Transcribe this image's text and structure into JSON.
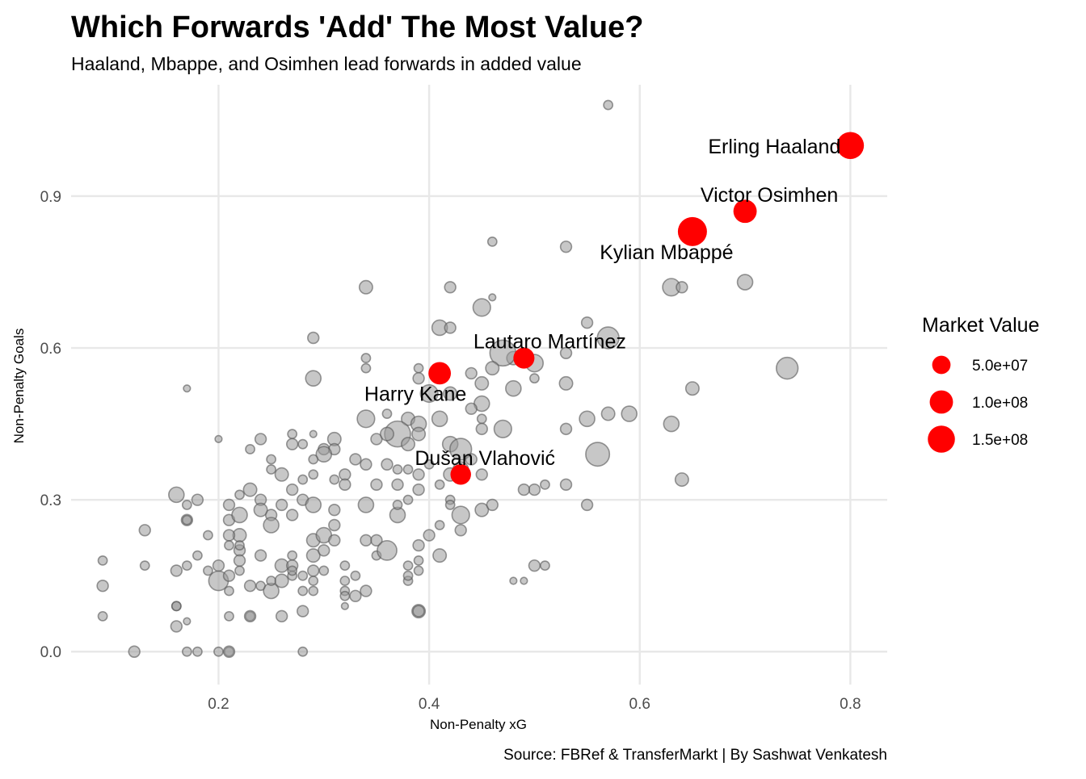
{
  "chart_data": {
    "type": "scatter",
    "title": "Which Forwards 'Add' The Most Value?",
    "subtitle": "Haaland, Mbappe, and Osimhen lead forwards in added value",
    "caption": "Source: FBRef & TransferMarkt | By Sashwat Venkatesh",
    "xlabel": "Non-Penalty xG",
    "ylabel": "Non-Penalty Goals",
    "xlim": [
      0.06,
      0.835
    ],
    "ylim": [
      -0.065,
      1.12
    ],
    "xticks": [
      0.2,
      0.4,
      0.6,
      0.8
    ],
    "yticks": [
      0.0,
      0.3,
      0.6,
      0.9
    ],
    "xtick_labels": [
      "0.2",
      "0.4",
      "0.6",
      "0.8"
    ],
    "ytick_labels": [
      "0.0",
      "0.3",
      "0.6",
      "0.9"
    ],
    "grid": true,
    "legend": {
      "title": "Market Value",
      "position": "right",
      "entries": [
        {
          "label": "5.0e+07",
          "value": 50000000
        },
        {
          "label": "1.0e+08",
          "value": 100000000
        },
        {
          "label": "1.5e+08",
          "value": 150000000
        }
      ]
    },
    "colors": {
      "highlight": "#ff0000",
      "other": "#999999"
    },
    "highlighted": [
      {
        "name": "Erling Haaland",
        "x": 0.8,
        "y": 1.0,
        "value": 150000000
      },
      {
        "name": "Victor Osimhen",
        "x": 0.7,
        "y": 0.87,
        "value": 100000000
      },
      {
        "name": "Kylian Mbappé",
        "x": 0.65,
        "y": 0.83,
        "value": 180000000
      },
      {
        "name": "Lautaro Martínez",
        "x": 0.49,
        "y": 0.58,
        "value": 75000000
      },
      {
        "name": "Harry Kane",
        "x": 0.41,
        "y": 0.55,
        "value": 90000000
      },
      {
        "name": "Dušan Vlahović",
        "x": 0.43,
        "y": 0.35,
        "value": 70000000
      }
    ],
    "others": [
      [
        0.57,
        1.08,
        2
      ],
      [
        0.53,
        0.8,
        3
      ],
      [
        0.46,
        0.81,
        2
      ],
      [
        0.34,
        0.72,
        4
      ],
      [
        0.42,
        0.72,
        3
      ],
      [
        0.46,
        0.7,
        1
      ],
      [
        0.45,
        0.68,
        6
      ],
      [
        0.41,
        0.64,
        5
      ],
      [
        0.42,
        0.64,
        3
      ],
      [
        0.55,
        0.65,
        3
      ],
      [
        0.57,
        0.62,
        8
      ],
      [
        0.29,
        0.62,
        3
      ],
      [
        0.63,
        0.72,
        6
      ],
      [
        0.64,
        0.72,
        3
      ],
      [
        0.7,
        0.73,
        5
      ],
      [
        0.74,
        0.56,
        8
      ],
      [
        0.65,
        0.52,
        4
      ],
      [
        0.5,
        0.57,
        6
      ],
      [
        0.48,
        0.58,
        4
      ],
      [
        0.47,
        0.59,
        10
      ],
      [
        0.46,
        0.56,
        4
      ],
      [
        0.44,
        0.55,
        3
      ],
      [
        0.39,
        0.56,
        2
      ],
      [
        0.39,
        0.54,
        3
      ],
      [
        0.34,
        0.58,
        2
      ],
      [
        0.34,
        0.56,
        2
      ],
      [
        0.29,
        0.54,
        5
      ],
      [
        0.45,
        0.53,
        4
      ],
      [
        0.48,
        0.52,
        5
      ],
      [
        0.5,
        0.54,
        2
      ],
      [
        0.53,
        0.53,
        4
      ],
      [
        0.53,
        0.59,
        3
      ],
      [
        0.42,
        0.51,
        4
      ],
      [
        0.4,
        0.51,
        6
      ],
      [
        0.45,
        0.49,
        5
      ],
      [
        0.44,
        0.48,
        3
      ],
      [
        0.36,
        0.47,
        2
      ],
      [
        0.34,
        0.46,
        6
      ],
      [
        0.38,
        0.46,
        4
      ],
      [
        0.41,
        0.46,
        5
      ],
      [
        0.45,
        0.46,
        2
      ],
      [
        0.37,
        0.43,
        10
      ],
      [
        0.39,
        0.45,
        5
      ],
      [
        0.39,
        0.43,
        4
      ],
      [
        0.45,
        0.44,
        3
      ],
      [
        0.47,
        0.44,
        6
      ],
      [
        0.53,
        0.44,
        3
      ],
      [
        0.55,
        0.46,
        5
      ],
      [
        0.57,
        0.47,
        4
      ],
      [
        0.59,
        0.47,
        5
      ],
      [
        0.63,
        0.45,
        5
      ],
      [
        0.56,
        0.39,
        9
      ],
      [
        0.64,
        0.34,
        4
      ],
      [
        0.35,
        0.42,
        3
      ],
      [
        0.36,
        0.43,
        4
      ],
      [
        0.38,
        0.41,
        4
      ],
      [
        0.42,
        0.41,
        5
      ],
      [
        0.43,
        0.4,
        8
      ],
      [
        0.44,
        0.38,
        3
      ],
      [
        0.24,
        0.42,
        3
      ],
      [
        0.23,
        0.4,
        2
      ],
      [
        0.2,
        0.42,
        1
      ],
      [
        0.25,
        0.36,
        2
      ],
      [
        0.25,
        0.38,
        2
      ],
      [
        0.27,
        0.41,
        3
      ],
      [
        0.27,
        0.43,
        2
      ],
      [
        0.28,
        0.41,
        2
      ],
      [
        0.29,
        0.43,
        1
      ],
      [
        0.3,
        0.4,
        3
      ],
      [
        0.31,
        0.42,
        4
      ],
      [
        0.31,
        0.4,
        3
      ],
      [
        0.3,
        0.39,
        5
      ],
      [
        0.29,
        0.38,
        2
      ],
      [
        0.33,
        0.38,
        3
      ],
      [
        0.34,
        0.37,
        3
      ],
      [
        0.36,
        0.37,
        3
      ],
      [
        0.37,
        0.36,
        2
      ],
      [
        0.38,
        0.36,
        2
      ],
      [
        0.39,
        0.35,
        3
      ],
      [
        0.4,
        0.37,
        2
      ],
      [
        0.41,
        0.33,
        2
      ],
      [
        0.42,
        0.35,
        4
      ],
      [
        0.43,
        0.36,
        5
      ],
      [
        0.45,
        0.35,
        3
      ],
      [
        0.35,
        0.33,
        3
      ],
      [
        0.37,
        0.33,
        3
      ],
      [
        0.38,
        0.3,
        2
      ],
      [
        0.39,
        0.32,
        3
      ],
      [
        0.32,
        0.35,
        3
      ],
      [
        0.32,
        0.33,
        3
      ],
      [
        0.31,
        0.34,
        2
      ],
      [
        0.29,
        0.35,
        2
      ],
      [
        0.28,
        0.34,
        2
      ],
      [
        0.26,
        0.35,
        4
      ],
      [
        0.27,
        0.32,
        3
      ],
      [
        0.28,
        0.3,
        3
      ],
      [
        0.29,
        0.29,
        5
      ],
      [
        0.27,
        0.27,
        3
      ],
      [
        0.26,
        0.29,
        3
      ],
      [
        0.25,
        0.27,
        3
      ],
      [
        0.24,
        0.3,
        3
      ],
      [
        0.24,
        0.28,
        4
      ],
      [
        0.23,
        0.32,
        4
      ],
      [
        0.22,
        0.31,
        2
      ],
      [
        0.21,
        0.29,
        3
      ],
      [
        0.21,
        0.26,
        3
      ],
      [
        0.22,
        0.27,
        5
      ],
      [
        0.22,
        0.23,
        4
      ],
      [
        0.21,
        0.23,
        3
      ],
      [
        0.21,
        0.21,
        2
      ],
      [
        0.19,
        0.23,
        2
      ],
      [
        0.2,
        0.17,
        3
      ],
      [
        0.2,
        0.14,
        7
      ],
      [
        0.19,
        0.16,
        2
      ],
      [
        0.18,
        0.19,
        2
      ],
      [
        0.17,
        0.17,
        2
      ],
      [
        0.16,
        0.16,
        3
      ],
      [
        0.16,
        0.31,
        5
      ],
      [
        0.17,
        0.29,
        2
      ],
      [
        0.18,
        0.3,
        3
      ],
      [
        0.17,
        0.26,
        3
      ],
      [
        0.17,
        0.26,
        2
      ],
      [
        0.13,
        0.24,
        3
      ],
      [
        0.13,
        0.17,
        2
      ],
      [
        0.09,
        0.18,
        2
      ],
      [
        0.09,
        0.13,
        3
      ],
      [
        0.09,
        0.07,
        2
      ],
      [
        0.12,
        0.0,
        3
      ],
      [
        0.16,
        0.05,
        3
      ],
      [
        0.16,
        0.09,
        2
      ],
      [
        0.17,
        0.06,
        1
      ],
      [
        0.17,
        0.0,
        2
      ],
      [
        0.18,
        0.0,
        2
      ],
      [
        0.2,
        0.0,
        2
      ],
      [
        0.21,
        0.0,
        2
      ],
      [
        0.21,
        0.0,
        3
      ],
      [
        0.21,
        0.07,
        2
      ],
      [
        0.21,
        0.12,
        2
      ],
      [
        0.21,
        0.15,
        3
      ],
      [
        0.22,
        0.16,
        2
      ],
      [
        0.22,
        0.2,
        3
      ],
      [
        0.22,
        0.18,
        3
      ],
      [
        0.22,
        0.21,
        2
      ],
      [
        0.23,
        0.07,
        2
      ],
      [
        0.23,
        0.07,
        3
      ],
      [
        0.23,
        0.13,
        3
      ],
      [
        0.24,
        0.13,
        2
      ],
      [
        0.25,
        0.12,
        5
      ],
      [
        0.25,
        0.14,
        2
      ],
      [
        0.24,
        0.19,
        3
      ],
      [
        0.25,
        0.25,
        5
      ],
      [
        0.26,
        0.14,
        4
      ],
      [
        0.26,
        0.17,
        4
      ],
      [
        0.26,
        0.07,
        3
      ],
      [
        0.27,
        0.15,
        2
      ],
      [
        0.27,
        0.17,
        3
      ],
      [
        0.27,
        0.16,
        2
      ],
      [
        0.27,
        0.19,
        2
      ],
      [
        0.28,
        0.12,
        2
      ],
      [
        0.28,
        0.15,
        2
      ],
      [
        0.28,
        0.08,
        3
      ],
      [
        0.28,
        0.0,
        2
      ],
      [
        0.29,
        0.12,
        2
      ],
      [
        0.29,
        0.14,
        2
      ],
      [
        0.29,
        0.16,
        3
      ],
      [
        0.29,
        0.19,
        4
      ],
      [
        0.29,
        0.22,
        4
      ],
      [
        0.3,
        0.23,
        5
      ],
      [
        0.3,
        0.2,
        3
      ],
      [
        0.3,
        0.16,
        2
      ],
      [
        0.31,
        0.22,
        3
      ],
      [
        0.31,
        0.25,
        3
      ],
      [
        0.31,
        0.28,
        3
      ],
      [
        0.32,
        0.17,
        2
      ],
      [
        0.32,
        0.14,
        2
      ],
      [
        0.32,
        0.12,
        2
      ],
      [
        0.32,
        0.09,
        1
      ],
      [
        0.32,
        0.11,
        2
      ],
      [
        0.33,
        0.15,
        2
      ],
      [
        0.33,
        0.11,
        3
      ],
      [
        0.34,
        0.12,
        3
      ],
      [
        0.34,
        0.22,
        3
      ],
      [
        0.34,
        0.29,
        5
      ],
      [
        0.35,
        0.19,
        2
      ],
      [
        0.35,
        0.22,
        3
      ],
      [
        0.36,
        0.2,
        7
      ],
      [
        0.37,
        0.27,
        5
      ],
      [
        0.37,
        0.29,
        2
      ],
      [
        0.38,
        0.17,
        2
      ],
      [
        0.38,
        0.14,
        2
      ],
      [
        0.38,
        0.15,
        2
      ],
      [
        0.39,
        0.21,
        3
      ],
      [
        0.39,
        0.18,
        2
      ],
      [
        0.39,
        0.16,
        2
      ],
      [
        0.39,
        0.08,
        4
      ],
      [
        0.39,
        0.08,
        3
      ],
      [
        0.4,
        0.23,
        3
      ],
      [
        0.41,
        0.19,
        4
      ],
      [
        0.41,
        0.25,
        2
      ],
      [
        0.42,
        0.3,
        2
      ],
      [
        0.43,
        0.24,
        3
      ],
      [
        0.43,
        0.27,
        6
      ],
      [
        0.45,
        0.28,
        4
      ],
      [
        0.46,
        0.29,
        3
      ],
      [
        0.42,
        0.29,
        2
      ],
      [
        0.5,
        0.32,
        3
      ],
      [
        0.5,
        0.17,
        3
      ],
      [
        0.49,
        0.14,
        1
      ],
      [
        0.48,
        0.14,
        1
      ],
      [
        0.51,
        0.17,
        2
      ],
      [
        0.55,
        0.29,
        3
      ],
      [
        0.53,
        0.33,
        3
      ],
      [
        0.51,
        0.33,
        2
      ],
      [
        0.49,
        0.32,
        3
      ],
      [
        0.16,
        0.09,
        2
      ],
      [
        0.17,
        0.52,
        1
      ]
    ]
  }
}
